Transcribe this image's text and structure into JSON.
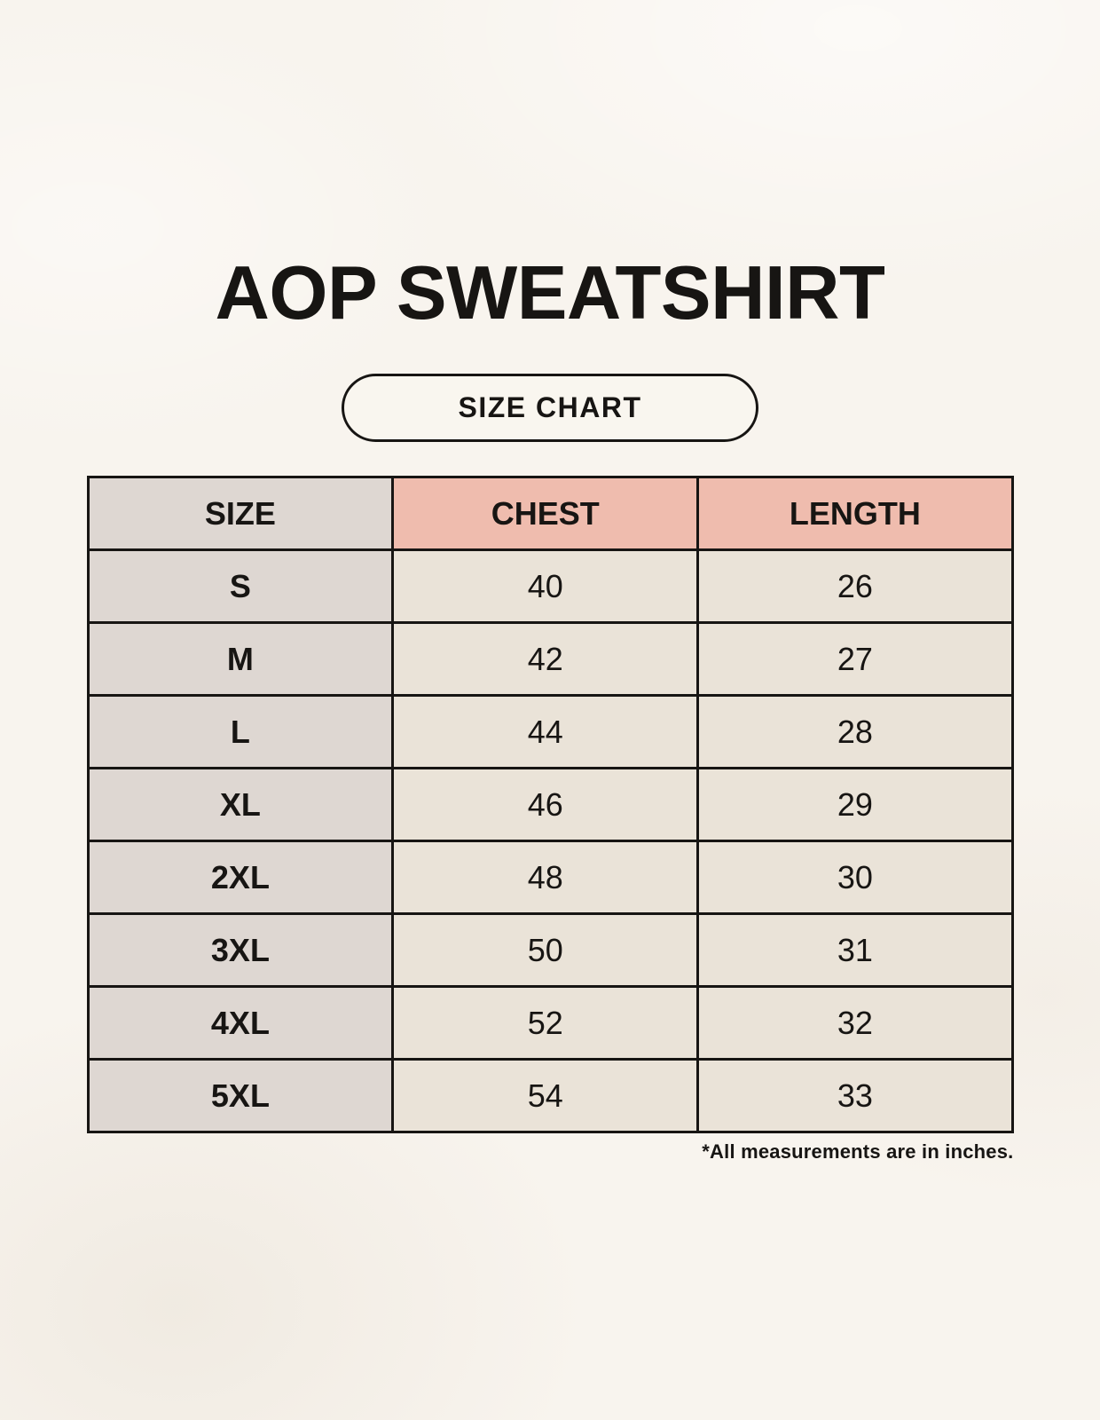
{
  "header": {
    "title": "AOP SWEATSHIRT",
    "badge_label": "SIZE CHART"
  },
  "colors": {
    "background": "#f8f4ee",
    "size_column": "#ded7d2",
    "accent_header": "#efbcae",
    "data_cell": "#eae3d8",
    "border": "#171513",
    "text": "#171513"
  },
  "chart_data": {
    "type": "table",
    "title": "AOP SWEATSHIRT",
    "subtitle": "SIZE CHART",
    "columns": [
      "SIZE",
      "CHEST",
      "LENGTH"
    ],
    "rows": [
      [
        "S",
        40,
        26
      ],
      [
        "M",
        42,
        27
      ],
      [
        "L",
        44,
        28
      ],
      [
        "XL",
        46,
        29
      ],
      [
        "2XL",
        48,
        30
      ],
      [
        "3XL",
        50,
        31
      ],
      [
        "4XL",
        52,
        32
      ],
      [
        "5XL",
        54,
        33
      ]
    ],
    "note": "*All measurements are in inches.",
    "units": "inches",
    "layout_hints": {
      "size_column_fill": "gray",
      "measure_header_fill": "salmon",
      "data_cell_fill": "cream",
      "grid": "on"
    }
  }
}
